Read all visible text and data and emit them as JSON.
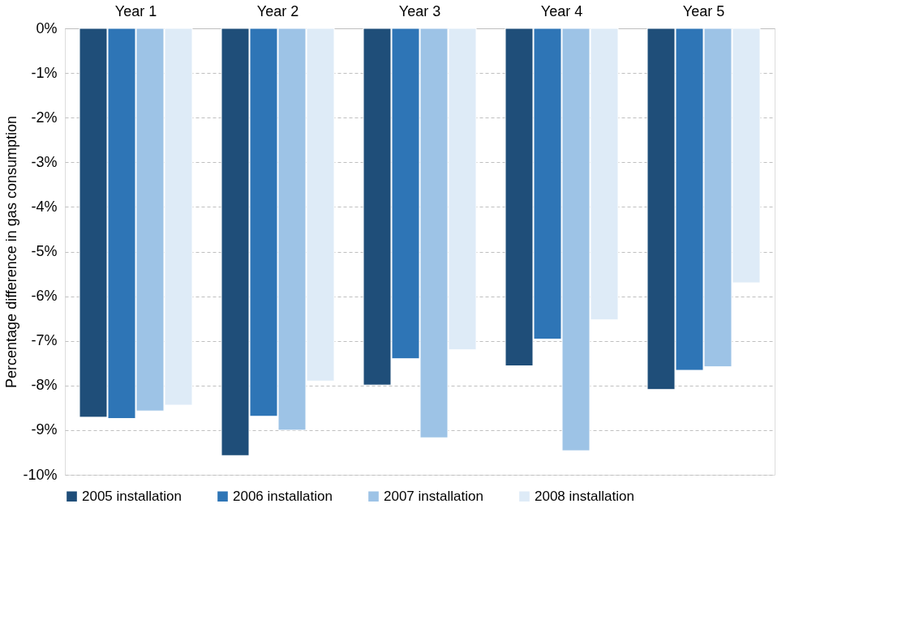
{
  "chart_data": {
    "type": "bar",
    "ylabel": "Percentage difference  in gas consumption",
    "categories": [
      "Year 1",
      "Year 2",
      "Year 3",
      "Year 4",
      "Year 5"
    ],
    "series": [
      {
        "name": "2005 installation",
        "color": "#1f4e79",
        "values": [
          -8.71,
          -9.57,
          -7.99,
          -7.56,
          -8.09
        ]
      },
      {
        "name": "2006 installation",
        "color": "#2e75b6",
        "values": [
          -8.74,
          -8.69,
          -7.4,
          -6.96,
          -7.66
        ]
      },
      {
        "name": "2007 installation",
        "color": "#9dc3e6",
        "values": [
          -8.57,
          -9.0,
          -9.17,
          -9.46,
          -7.58
        ]
      },
      {
        "name": "2008 installation",
        "color": "#deebf7",
        "values": [
          -8.44,
          -7.9,
          -7.2,
          -6.53,
          -5.7
        ]
      }
    ],
    "ylim": [
      -10,
      0
    ],
    "yticks": [
      {
        "value": 0,
        "label": "0%"
      },
      {
        "value": -1,
        "label": "-1%"
      },
      {
        "value": -2,
        "label": "-2%"
      },
      {
        "value": -3,
        "label": "-3%"
      },
      {
        "value": -4,
        "label": "-4%"
      },
      {
        "value": -5,
        "label": "-5%"
      },
      {
        "value": -6,
        "label": "-6%"
      },
      {
        "value": -7,
        "label": "-7%"
      },
      {
        "value": -8,
        "label": "-8%"
      },
      {
        "value": -9,
        "label": "-9%"
      },
      {
        "value": -10,
        "label": "-10%"
      }
    ],
    "grid": "y",
    "legend": "bottom"
  }
}
